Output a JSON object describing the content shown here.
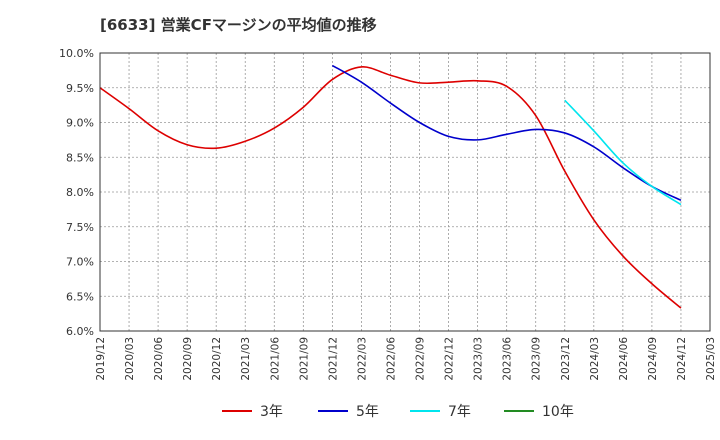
{
  "chart_data": {
    "type": "line",
    "title": "[6633]  営業CFマージンの平均値の推移",
    "xlabel": "",
    "ylabel": "",
    "ylim": [
      6.0,
      10.0
    ],
    "yticks": [
      "6.0%",
      "6.5%",
      "7.0%",
      "7.5%",
      "8.0%",
      "8.5%",
      "9.0%",
      "9.5%",
      "10.0%"
    ],
    "xticks": [
      "2019/12",
      "2020/03",
      "2020/06",
      "2020/09",
      "2020/12",
      "2021/03",
      "2021/06",
      "2021/09",
      "2021/12",
      "2022/03",
      "2022/06",
      "2022/09",
      "2022/12",
      "2023/03",
      "2023/06",
      "2023/09",
      "2023/12",
      "2024/03",
      "2024/06",
      "2024/09",
      "2024/12",
      "2025/03"
    ],
    "grid": true,
    "legend_position": "bottom",
    "series": [
      {
        "name": "3年",
        "color": "#dd0000",
        "x": [
          "2019/12",
          "2020/03",
          "2020/06",
          "2020/09",
          "2020/12",
          "2021/03",
          "2021/06",
          "2021/09",
          "2021/12",
          "2022/03",
          "2022/06",
          "2022/09",
          "2022/12",
          "2023/03",
          "2023/06",
          "2023/09",
          "2023/12",
          "2024/03",
          "2024/06",
          "2024/09",
          "2024/12"
        ],
        "values": [
          9.5,
          9.2,
          8.88,
          8.68,
          8.63,
          8.73,
          8.92,
          9.22,
          9.62,
          9.8,
          9.68,
          9.57,
          9.58,
          9.6,
          9.52,
          9.1,
          8.3,
          7.6,
          7.08,
          6.68,
          6.33
        ]
      },
      {
        "name": "5年",
        "color": "#0000cc",
        "x": [
          "2021/12",
          "2022/03",
          "2022/06",
          "2022/09",
          "2022/12",
          "2023/03",
          "2023/06",
          "2023/09",
          "2023/12",
          "2024/03",
          "2024/06",
          "2024/09",
          "2024/12"
        ],
        "values": [
          9.82,
          9.58,
          9.28,
          9.0,
          8.8,
          8.75,
          8.83,
          8.9,
          8.85,
          8.65,
          8.35,
          8.08,
          7.88
        ]
      },
      {
        "name": "7年",
        "color": "#00e5ee",
        "x": [
          "2023/12",
          "2024/03",
          "2024/06",
          "2024/09",
          "2024/12"
        ],
        "values": [
          9.32,
          8.88,
          8.42,
          8.08,
          7.82
        ]
      },
      {
        "name": "10年",
        "color": "#228b22",
        "x": [],
        "values": []
      }
    ]
  }
}
